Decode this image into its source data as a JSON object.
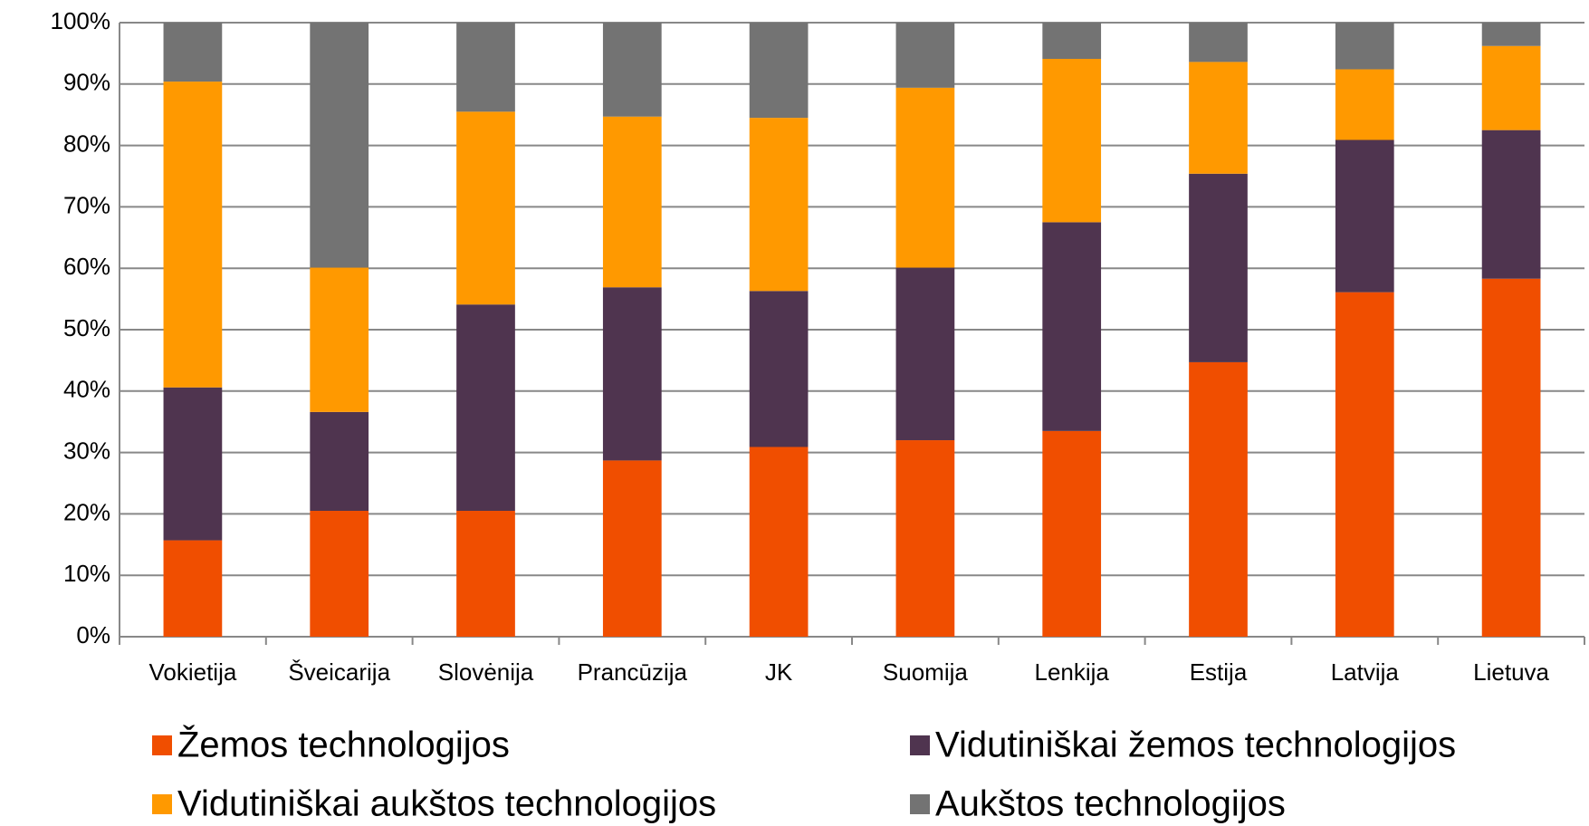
{
  "chart_data": {
    "type": "stacked_bar",
    "categories": [
      "Vokietija",
      "Šveicarija",
      "Slovėnija",
      "Prancūzija",
      "JK",
      "Suomija",
      "Lenkija",
      "Estija",
      "Latvija",
      "Lietuva"
    ],
    "series": [
      {
        "name": "Žemos technologijos",
        "color": "#f04e00",
        "values": [
          15.7,
          20.5,
          20.5,
          28.7,
          30.9,
          32.0,
          33.5,
          44.7,
          56.1,
          58.3
        ]
      },
      {
        "name": "Vidutiniškai žemos technologijos",
        "color": "#4f344f",
        "values": [
          24.9,
          16.1,
          33.6,
          28.2,
          25.4,
          28.1,
          34.0,
          30.7,
          24.8,
          24.2
        ]
      },
      {
        "name": "Vidutiniškai aukštos technologijos",
        "color": "#ff9900",
        "values": [
          49.8,
          23.5,
          31.4,
          27.8,
          28.2,
          29.3,
          26.6,
          18.2,
          11.5,
          13.7
        ]
      },
      {
        "name": "Aukštos technologijos",
        "color": "#737373",
        "values": [
          9.6,
          39.9,
          14.5,
          15.3,
          15.5,
          10.6,
          5.9,
          6.4,
          7.6,
          3.8
        ]
      }
    ],
    "ylim": [
      0,
      100
    ],
    "yticks": [
      {
        "value": 0,
        "label": "0%"
      },
      {
        "value": 10,
        "label": "10%"
      },
      {
        "value": 20,
        "label": "20%"
      },
      {
        "value": 30,
        "label": "30%"
      },
      {
        "value": 40,
        "label": "40%"
      },
      {
        "value": 50,
        "label": "50%"
      },
      {
        "value": 60,
        "label": "60%"
      },
      {
        "value": 70,
        "label": "70%"
      },
      {
        "value": 80,
        "label": "80%"
      },
      {
        "value": 90,
        "label": "90%"
      },
      {
        "value": 100,
        "label": "100%"
      }
    ],
    "grid": true,
    "legend": "bottom"
  }
}
